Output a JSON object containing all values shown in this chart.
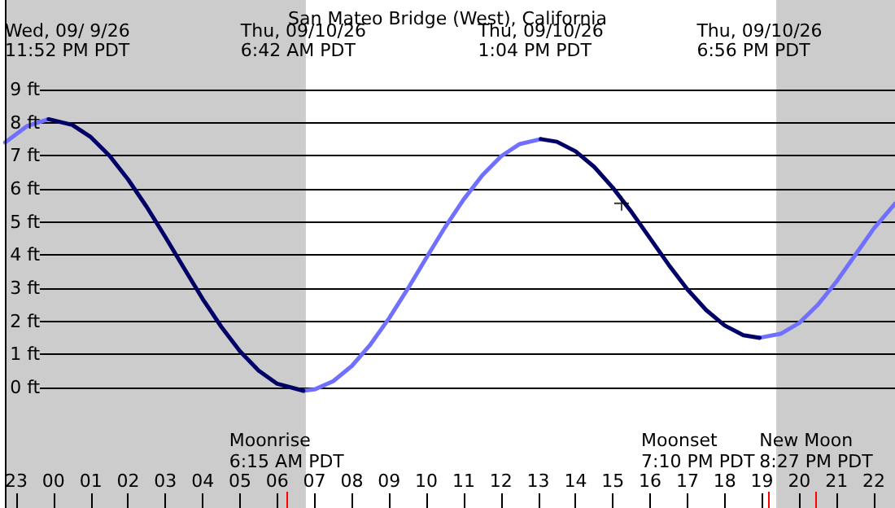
{
  "chart_data": {
    "type": "line",
    "title": "San Mateo Bridge (West), California",
    "xlim": [
      "--09-09T22:42",
      "--09-10T22:34"
    ],
    "xticks": [
      {
        "value": "--09-09T23:00",
        "label": "23"
      },
      {
        "value": "--09-10T00:00",
        "label": "00"
      },
      {
        "value": "--09-10T01:00",
        "label": "01"
      },
      {
        "value": "--09-10T02:00",
        "label": "02"
      },
      {
        "value": "--09-10T03:00",
        "label": "03"
      },
      {
        "value": "--09-10T04:00",
        "label": "04"
      },
      {
        "value": "--09-10T05:00",
        "label": "05"
      },
      {
        "value": "--09-10T06:00",
        "label": "06"
      },
      {
        "value": "--09-10T07:00",
        "label": "07"
      },
      {
        "value": "--09-10T08:00",
        "label": "08"
      },
      {
        "value": "--09-10T09:00",
        "label": "09"
      },
      {
        "value": "--09-10T10:00",
        "label": "10"
      },
      {
        "value": "--09-10T11:00",
        "label": "11"
      },
      {
        "value": "--09-10T12:00",
        "label": "12"
      },
      {
        "value": "--09-10T13:00",
        "label": "13"
      },
      {
        "value": "--09-10T14:00",
        "label": "14"
      },
      {
        "value": "--09-10T15:00",
        "label": "15"
      },
      {
        "value": "--09-10T16:00",
        "label": "16"
      },
      {
        "value": "--09-10T17:00",
        "label": "17"
      },
      {
        "value": "--09-10T18:00",
        "label": "18"
      },
      {
        "value": "--09-10T19:00",
        "label": "19"
      },
      {
        "value": "--09-10T20:00",
        "label": "20"
      },
      {
        "value": "--09-10T21:00",
        "label": "21"
      },
      {
        "value": "--09-10T22:00",
        "label": "22"
      }
    ],
    "ylim": [
      -3.64,
      11.7
    ],
    "yticks": [
      {
        "value": 0,
        "label": "0 ft"
      },
      {
        "value": 1,
        "label": "1 ft"
      },
      {
        "value": 2,
        "label": "2 ft"
      },
      {
        "value": 3,
        "label": "3 ft"
      },
      {
        "value": 4,
        "label": "4 ft"
      },
      {
        "value": 5,
        "label": "5 ft"
      },
      {
        "value": 6,
        "label": "6 ft"
      },
      {
        "value": 7,
        "label": "7 ft"
      },
      {
        "value": 8,
        "label": "8 ft"
      },
      {
        "value": 9,
        "label": "9 ft"
      }
    ],
    "series": [
      {
        "color": "#7070ff",
        "x": [
          "--09-09T22:42",
          "--09-09T23:18",
          "--09-09T23:52",
          "--09-10T03:00",
          "--09-10T06:42",
          "--09-10T07:00",
          "--09-10T07:30",
          "--09-10T08:00",
          "--09-10T08:30",
          "--09-10T09:00",
          "--09-10T09:30",
          "--09-10T10:00",
          "--09-10T10:30",
          "--09-10T11:00",
          "--09-10T11:30",
          "--09-10T12:00",
          "--09-10T12:30",
          "--09-10T13:04",
          "--09-10T16:00",
          "--09-10T18:56",
          "--09-10T19:30",
          "--09-10T20:00",
          "--09-10T20:30",
          "--09-10T21:00",
          "--09-10T21:30",
          "--09-10T22:00",
          "--09-10T22:34"
        ],
        "values": [
          7.4,
          7.9,
          8.1,
          null,
          -0.1,
          -0.06,
          0.19,
          0.65,
          1.3,
          2.09,
          2.98,
          3.92,
          4.84,
          5.68,
          6.41,
          6.98,
          7.35,
          7.5,
          null,
          1.5,
          1.62,
          1.95,
          2.5,
          3.2,
          4.0,
          4.8,
          5.55
        ]
      },
      {
        "color": "#000066",
        "x": [
          "--09-09T23:52",
          "--09-10T00:30",
          "--09-10T01:00",
          "--09-10T01:30",
          "--09-10T02:00",
          "--09-10T02:30",
          "--09-10T03:00",
          "--09-10T03:30",
          "--09-10T04:00",
          "--09-10T04:30",
          "--09-10T05:00",
          "--09-10T05:30",
          "--09-10T06:00",
          "--09-10T06:42",
          "--09-10T10:00",
          "--09-10T13:04",
          "--09-10T13:30",
          "--09-10T14:00",
          "--09-10T14:30",
          "--09-10T15:00",
          "--09-10T15:30",
          "--09-10T16:00",
          "--09-10T16:30",
          "--09-10T17:00",
          "--09-10T17:30",
          "--09-10T18:00",
          "--09-10T18:30",
          "--09-10T18:56"
        ],
        "values": [
          8.1,
          7.93,
          7.56,
          7.0,
          6.28,
          5.45,
          4.54,
          3.6,
          2.67,
          1.83,
          1.09,
          0.51,
          0.11,
          -0.1,
          null,
          7.5,
          7.42,
          7.13,
          6.66,
          6.03,
          5.3,
          4.5,
          3.7,
          2.96,
          2.34,
          1.87,
          1.58,
          1.5
        ]
      },
      {
        "type": "scatter",
        "marker": "cross",
        "color": "#000000",
        "x": [
          "--09-10T15:14"
        ],
        "values": [
          5.56
        ]
      }
    ],
    "bands": [
      {
        "axis": "x",
        "from": "--09-09T22:42",
        "to": "--09-10T06:46",
        "color": "#cccccc"
      },
      {
        "axis": "x",
        "from": "--09-10T19:23",
        "to": "--09-10T22:34",
        "color": "#cccccc"
      }
    ],
    "ref_lines": [
      {
        "axis": "x",
        "value": "--09-10T06:15",
        "label": "Moonrise\n6:15 AM PDT",
        "color": "#ff0000"
      },
      {
        "axis": "x",
        "value": "--09-10T19:10",
        "label": "Moonset\n7:10 PM PDT",
        "color": "#ff0000"
      },
      {
        "axis": "x",
        "value": "--09-10T20:27",
        "label": "New Moon\n8:27 PM PDT",
        "color": "#ff0000"
      }
    ],
    "annotations": [
      "Wed, 09/ 9/26\n11:52 PM PDT",
      "Thu, 09/10/26\n6:42 AM PDT",
      "Thu, 09/10/26\n1:04 PM PDT",
      "Thu, 09/10/26\n6:56 PM PDT"
    ],
    "grid": "y",
    "marker": "none",
    "line_style": "solid"
  }
}
